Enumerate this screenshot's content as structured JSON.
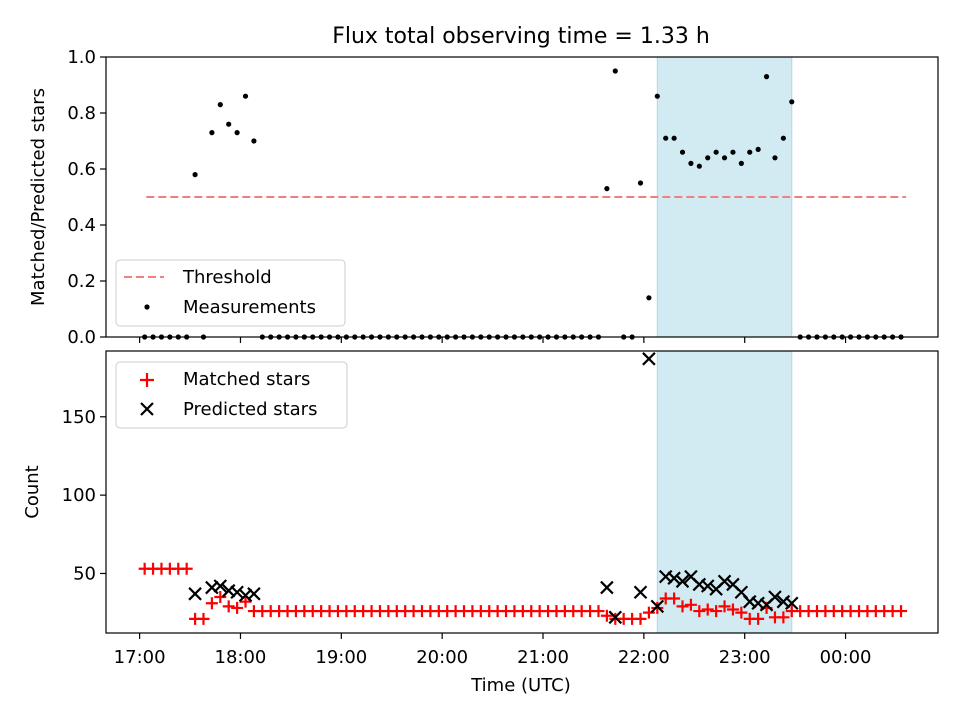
{
  "title": "Flux total observing time = 1.33 h",
  "x_tick_labels": [
    "17:00",
    "18:00",
    "19:00",
    "20:00",
    "21:00",
    "22:00",
    "23:00",
    "00:00"
  ],
  "x_label": "Time (UTC)",
  "colors": {
    "threshold": "#f08080",
    "matched": "#ff0000",
    "predicted": "#000000",
    "shade": "#add8e6"
  },
  "chart_data": [
    {
      "type": "scatter",
      "title": "Flux total observing time = 1.33 h",
      "xlabel": "",
      "ylabel": "Matched/Predicted stars",
      "xlim": [
        "16:40",
        "00:55"
      ],
      "ylim": [
        0,
        1
      ],
      "y_ticks": [
        "0.0",
        "0.2",
        "0.4",
        "0.6",
        "0.8",
        "1.0"
      ],
      "grid": false,
      "legend": "lower-left",
      "shaded_interval": [
        "22:08",
        "23:28"
      ],
      "threshold": {
        "name": "Threshold",
        "value": 0.5,
        "from": "17:04",
        "to": "00:36"
      },
      "series": [
        {
          "name": "Measurements",
          "points": [
            [
              "17:03",
              0
            ],
            [
              "17:08",
              0
            ],
            [
              "17:13",
              0
            ],
            [
              "17:18",
              0
            ],
            [
              "17:23",
              0
            ],
            [
              "17:28",
              0
            ],
            [
              "17:33",
              0.58
            ],
            [
              "17:38",
              0
            ],
            [
              "17:43",
              0.73
            ],
            [
              "17:48",
              0.83
            ],
            [
              "17:53",
              0.76
            ],
            [
              "17:58",
              0.73
            ],
            [
              "18:03",
              0.86
            ],
            [
              "18:08",
              0.7
            ],
            [
              "18:13",
              0
            ],
            [
              "18:18",
              0
            ],
            [
              "18:23",
              0
            ],
            [
              "18:28",
              0
            ],
            [
              "18:33",
              0
            ],
            [
              "18:38",
              0
            ],
            [
              "18:43",
              0
            ],
            [
              "18:48",
              0
            ],
            [
              "18:53",
              0
            ],
            [
              "18:58",
              0
            ],
            [
              "19:03",
              0
            ],
            [
              "19:08",
              0
            ],
            [
              "19:13",
              0
            ],
            [
              "19:18",
              0
            ],
            [
              "19:23",
              0
            ],
            [
              "19:28",
              0
            ],
            [
              "19:33",
              0
            ],
            [
              "19:38",
              0
            ],
            [
              "19:43",
              0
            ],
            [
              "19:48",
              0
            ],
            [
              "19:53",
              0
            ],
            [
              "19:58",
              0
            ],
            [
              "20:03",
              0
            ],
            [
              "20:08",
              0
            ],
            [
              "20:13",
              0
            ],
            [
              "20:18",
              0
            ],
            [
              "20:23",
              0
            ],
            [
              "20:28",
              0
            ],
            [
              "20:33",
              0
            ],
            [
              "20:38",
              0
            ],
            [
              "20:43",
              0
            ],
            [
              "20:48",
              0
            ],
            [
              "20:53",
              0
            ],
            [
              "20:58",
              0
            ],
            [
              "21:03",
              0
            ],
            [
              "21:08",
              0
            ],
            [
              "21:13",
              0
            ],
            [
              "21:18",
              0
            ],
            [
              "21:23",
              0
            ],
            [
              "21:28",
              0
            ],
            [
              "21:33",
              0
            ],
            [
              "21:38",
              0.53
            ],
            [
              "21:43",
              0.95
            ],
            [
              "21:48",
              0
            ],
            [
              "21:53",
              0
            ],
            [
              "21:58",
              0.55
            ],
            [
              "22:03",
              0.14
            ],
            [
              "22:08",
              0.86
            ],
            [
              "22:13",
              0.71
            ],
            [
              "22:18",
              0.71
            ],
            [
              "22:23",
              0.66
            ],
            [
              "22:28",
              0.62
            ],
            [
              "22:33",
              0.61
            ],
            [
              "22:38",
              0.64
            ],
            [
              "22:43",
              0.66
            ],
            [
              "22:48",
              0.64
            ],
            [
              "22:53",
              0.66
            ],
            [
              "22:58",
              0.62
            ],
            [
              "23:03",
              0.66
            ],
            [
              "23:08",
              0.67
            ],
            [
              "23:13",
              0.93
            ],
            [
              "23:18",
              0.64
            ],
            [
              "23:23",
              0.71
            ],
            [
              "23:28",
              0.84
            ],
            [
              "23:33",
              0
            ],
            [
              "23:38",
              0
            ],
            [
              "23:43",
              0
            ],
            [
              "23:48",
              0
            ],
            [
              "23:53",
              0
            ],
            [
              "23:58",
              0
            ],
            [
              "00:03",
              0
            ],
            [
              "00:08",
              0
            ],
            [
              "00:13",
              0
            ],
            [
              "00:18",
              0
            ],
            [
              "00:23",
              0
            ],
            [
              "00:28",
              0
            ],
            [
              "00:33",
              0
            ]
          ]
        }
      ]
    },
    {
      "type": "scatter",
      "xlabel": "Time (UTC)",
      "ylabel": "Count",
      "xlim": [
        "16:40",
        "00:55"
      ],
      "ylim": [
        12,
        192
      ],
      "y_ticks": [
        "50",
        "100",
        "150"
      ],
      "grid": false,
      "legend": "upper-left",
      "shaded_interval": [
        "22:08",
        "23:28"
      ],
      "series": [
        {
          "name": "Matched stars",
          "marker": "plus",
          "points": [
            [
              "17:03",
              53
            ],
            [
              "17:08",
              53
            ],
            [
              "17:13",
              53
            ],
            [
              "17:18",
              53
            ],
            [
              "17:23",
              53
            ],
            [
              "17:28",
              53
            ],
            [
              "17:33",
              21
            ],
            [
              "17:38",
              21
            ],
            [
              "17:43",
              31
            ],
            [
              "17:48",
              35
            ],
            [
              "17:53",
              29
            ],
            [
              "17:58",
              28
            ],
            [
              "18:03",
              32
            ],
            [
              "18:08",
              26
            ],
            [
              "18:13",
              26
            ],
            [
              "18:18",
              26
            ],
            [
              "18:23",
              26
            ],
            [
              "18:28",
              26
            ],
            [
              "18:33",
              26
            ],
            [
              "18:38",
              26
            ],
            [
              "18:43",
              26
            ],
            [
              "18:48",
              26
            ],
            [
              "18:53",
              26
            ],
            [
              "18:58",
              26
            ],
            [
              "19:03",
              26
            ],
            [
              "19:08",
              26
            ],
            [
              "19:13",
              26
            ],
            [
              "19:18",
              26
            ],
            [
              "19:23",
              26
            ],
            [
              "19:28",
              26
            ],
            [
              "19:33",
              26
            ],
            [
              "19:38",
              26
            ],
            [
              "19:43",
              26
            ],
            [
              "19:48",
              26
            ],
            [
              "19:53",
              26
            ],
            [
              "19:58",
              26
            ],
            [
              "20:03",
              26
            ],
            [
              "20:08",
              26
            ],
            [
              "20:13",
              26
            ],
            [
              "20:18",
              26
            ],
            [
              "20:23",
              26
            ],
            [
              "20:28",
              26
            ],
            [
              "20:33",
              26
            ],
            [
              "20:38",
              26
            ],
            [
              "20:43",
              26
            ],
            [
              "20:48",
              26
            ],
            [
              "20:53",
              26
            ],
            [
              "20:58",
              26
            ],
            [
              "21:03",
              26
            ],
            [
              "21:08",
              26
            ],
            [
              "21:13",
              26
            ],
            [
              "21:18",
              26
            ],
            [
              "21:23",
              26
            ],
            [
              "21:28",
              26
            ],
            [
              "21:33",
              26
            ],
            [
              "21:38",
              23
            ],
            [
              "21:43",
              21
            ],
            [
              "21:48",
              21
            ],
            [
              "21:53",
              21
            ],
            [
              "21:58",
              21
            ],
            [
              "22:03",
              25
            ],
            [
              "22:08",
              28
            ],
            [
              "22:13",
              34
            ],
            [
              "22:18",
              34
            ],
            [
              "22:23",
              29
            ],
            [
              "22:28",
              30
            ],
            [
              "22:33",
              26
            ],
            [
              "22:38",
              27
            ],
            [
              "22:43",
              26
            ],
            [
              "22:48",
              29
            ],
            [
              "22:53",
              27
            ],
            [
              "22:58",
              25
            ],
            [
              "23:03",
              21
            ],
            [
              "23:08",
              21
            ],
            [
              "23:13",
              28
            ],
            [
              "23:18",
              22
            ],
            [
              "23:23",
              22
            ],
            [
              "23:28",
              26
            ],
            [
              "23:33",
              26
            ],
            [
              "23:38",
              26
            ],
            [
              "23:43",
              26
            ],
            [
              "23:48",
              26
            ],
            [
              "23:53",
              26
            ],
            [
              "23:58",
              26
            ],
            [
              "00:03",
              26
            ],
            [
              "00:08",
              26
            ],
            [
              "00:13",
              26
            ],
            [
              "00:18",
              26
            ],
            [
              "00:23",
              26
            ],
            [
              "00:28",
              26
            ],
            [
              "00:33",
              26
            ]
          ]
        },
        {
          "name": "Predicted stars",
          "marker": "x",
          "points": [
            [
              "17:33",
              37
            ],
            [
              "17:43",
              41
            ],
            [
              "17:48",
              42
            ],
            [
              "17:53",
              39
            ],
            [
              "17:58",
              38
            ],
            [
              "18:03",
              36
            ],
            [
              "18:08",
              37
            ],
            [
              "21:38",
              41
            ],
            [
              "21:43",
              22
            ],
            [
              "21:58",
              38
            ],
            [
              "22:03",
              187
            ],
            [
              "22:08",
              29
            ],
            [
              "22:13",
              48
            ],
            [
              "22:18",
              47
            ],
            [
              "22:23",
              45
            ],
            [
              "22:28",
              48
            ],
            [
              "22:33",
              43
            ],
            [
              "22:38",
              42
            ],
            [
              "22:43",
              40
            ],
            [
              "22:48",
              45
            ],
            [
              "22:53",
              43
            ],
            [
              "22:58",
              38
            ],
            [
              "23:03",
              32
            ],
            [
              "23:08",
              31
            ],
            [
              "23:13",
              30
            ],
            [
              "23:18",
              35
            ],
            [
              "23:23",
              32
            ],
            [
              "23:28",
              31
            ]
          ]
        }
      ]
    }
  ]
}
